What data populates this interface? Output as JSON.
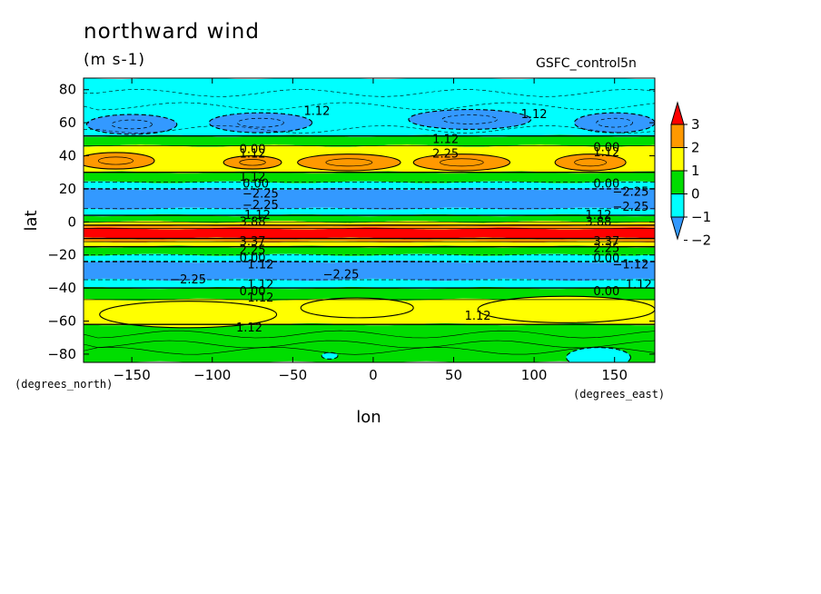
{
  "header": {
    "title": "northward wind",
    "units": "(m s-1)",
    "dataset": "GSFC_control5n"
  },
  "chart_data": {
    "type": "heatmap",
    "xlabel": "lon",
    "ylabel": "lat",
    "x_units": "(degrees_east)",
    "y_units": "(degrees_north)",
    "xlim": [
      -180,
      175
    ],
    "ylim": [
      -85,
      87
    ],
    "xticks": [
      -150,
      -100,
      -50,
      0,
      50,
      100,
      150
    ],
    "xtick_labels": [
      "−150",
      "−100",
      "−50",
      "0",
      "50",
      "100",
      "150"
    ],
    "yticks": [
      -80,
      -60,
      -40,
      -20,
      0,
      20,
      40,
      60,
      80
    ],
    "ytick_labels": [
      "−80",
      "−60",
      "−40",
      "−20",
      "0",
      "20",
      "40",
      "60",
      "80"
    ],
    "colorbar": {
      "levels": [
        -2,
        -1,
        0,
        1,
        2,
        3
      ],
      "labels": [
        "−2",
        "−1",
        "0",
        "1",
        "2",
        "3"
      ],
      "colors": [
        "#3399ff",
        "#00ffff",
        "#00dd00",
        "#ffff00",
        "#ff9900",
        "#ff0000"
      ]
    },
    "zonal_bands": [
      {
        "lat_from": 87,
        "lat_to": 52,
        "value": -1
      },
      {
        "lat_from": 52,
        "lat_to": 46,
        "value": 0
      },
      {
        "lat_from": 46,
        "lat_to": 30,
        "value": 1
      },
      {
        "lat_from": 30,
        "lat_to": 24,
        "value": 0
      },
      {
        "lat_from": 24,
        "lat_to": 20,
        "value": -1
      },
      {
        "lat_from": 20,
        "lat_to": 8,
        "value": -2
      },
      {
        "lat_from": 8,
        "lat_to": 4,
        "value": -1
      },
      {
        "lat_from": 4,
        "lat_to": 0,
        "value": 0
      },
      {
        "lat_from": 0,
        "lat_to": -2,
        "value": 1
      },
      {
        "lat_from": -2,
        "lat_to": -4,
        "value": 2
      },
      {
        "lat_from": -4,
        "lat_to": -10,
        "value": 3
      },
      {
        "lat_from": -10,
        "lat_to": -12,
        "value": 2
      },
      {
        "lat_from": -12,
        "lat_to": -15,
        "value": 1
      },
      {
        "lat_from": -15,
        "lat_to": -20,
        "value": 0
      },
      {
        "lat_from": -20,
        "lat_to": -24,
        "value": -1
      },
      {
        "lat_from": -24,
        "lat_to": -35,
        "value": -2
      },
      {
        "lat_from": -35,
        "lat_to": -40,
        "value": -1
      },
      {
        "lat_from": -40,
        "lat_to": -47,
        "value": 0
      },
      {
        "lat_from": -47,
        "lat_to": -62,
        "value": 1
      },
      {
        "lat_from": -62,
        "lat_to": -85,
        "value": 0
      }
    ],
    "blobs": [
      {
        "lon": -160,
        "lat": 37,
        "rlon": 24,
        "rlat": 5,
        "value": 2
      },
      {
        "lon": -75,
        "lat": 36,
        "rlon": 18,
        "rlat": 4,
        "value": 2
      },
      {
        "lon": -15,
        "lat": 36,
        "rlon": 32,
        "rlat": 5,
        "value": 2
      },
      {
        "lon": 55,
        "lat": 36,
        "rlon": 30,
        "rlat": 5,
        "value": 2
      },
      {
        "lon": 135,
        "lat": 36,
        "rlon": 22,
        "rlat": 5,
        "value": 2
      },
      {
        "lon": -150,
        "lat": 59,
        "rlon": 28,
        "rlat": 6,
        "value": -2
      },
      {
        "lon": -70,
        "lat": 60,
        "rlon": 32,
        "rlat": 6,
        "value": -2
      },
      {
        "lon": 60,
        "lat": 62,
        "rlon": 38,
        "rlat": 6,
        "value": -2
      },
      {
        "lon": 150,
        "lat": 60,
        "rlon": 25,
        "rlat": 6,
        "value": -2
      },
      {
        "lon": -115,
        "lat": -56,
        "rlon": 55,
        "rlat": 8,
        "value": 1
      },
      {
        "lon": -10,
        "lat": -52,
        "rlon": 35,
        "rlat": 6,
        "value": 1
      },
      {
        "lon": 120,
        "lat": -53,
        "rlon": 55,
        "rlat": 8,
        "value": 1
      },
      {
        "lon": 140,
        "lat": -82,
        "rlon": 20,
        "rlat": 6,
        "value": -1
      },
      {
        "lon": -27,
        "lat": -81,
        "rlon": 5,
        "rlat": 2,
        "value": -1
      }
    ],
    "contour_labels": [
      {
        "text": "1.12",
        "lon": -35,
        "lat": 67
      },
      {
        "text": "1.12",
        "lon": 100,
        "lat": 65
      },
      {
        "text": "1.12",
        "lon": 45,
        "lat": 50
      },
      {
        "text": "2.25",
        "lon": 45,
        "lat": 41
      },
      {
        "text": "0.00",
        "lon": -75,
        "lat": 44
      },
      {
        "text": "1.12",
        "lon": -75,
        "lat": 41
      },
      {
        "text": "0.00",
        "lon": 145,
        "lat": 45
      },
      {
        "text": "1.12",
        "lon": 145,
        "lat": 42
      },
      {
        "text": "1.12",
        "lon": -75,
        "lat": 27
      },
      {
        "text": "0.00",
        "lon": -73,
        "lat": 23
      },
      {
        "text": "−2.25",
        "lon": -70,
        "lat": 17
      },
      {
        "text": "−2.25",
        "lon": -70,
        "lat": 10
      },
      {
        "text": "0.00",
        "lon": 145,
        "lat": 23
      },
      {
        "text": "−2.25",
        "lon": 160,
        "lat": 18
      },
      {
        "text": "−2.25",
        "lon": 160,
        "lat": 9
      },
      {
        "text": "−1.12",
        "lon": -75,
        "lat": 4
      },
      {
        "text": "3.88",
        "lon": -75,
        "lat": 0
      },
      {
        "text": "1.12",
        "lon": 140,
        "lat": 4
      },
      {
        "text": "3.88",
        "lon": 140,
        "lat": 0
      },
      {
        "text": "3.37",
        "lon": -75,
        "lat": -12
      },
      {
        "text": "2.25",
        "lon": -75,
        "lat": -17
      },
      {
        "text": "3.37",
        "lon": 145,
        "lat": -12
      },
      {
        "text": "2.25",
        "lon": 145,
        "lat": -16
      },
      {
        "text": "0.00",
        "lon": -75,
        "lat": -22
      },
      {
        "text": "1.12",
        "lon": -70,
        "lat": -26
      },
      {
        "text": "0.00",
        "lon": 145,
        "lat": -22
      },
      {
        "text": "−1.12",
        "lon": 160,
        "lat": -26
      },
      {
        "text": "−2.25",
        "lon": -115,
        "lat": -35
      },
      {
        "text": "−2.25",
        "lon": -20,
        "lat": -32
      },
      {
        "text": "0.00",
        "lon": -75,
        "lat": -42
      },
      {
        "text": "1.12",
        "lon": -70,
        "lat": -46
      },
      {
        "text": "1.12",
        "lon": -70,
        "lat": -38
      },
      {
        "text": "0.00",
        "lon": 145,
        "lat": -42
      },
      {
        "text": "1.12",
        "lon": 165,
        "lat": -38
      },
      {
        "text": "1.12",
        "lon": 65,
        "lat": -57
      },
      {
        "text": "1.12",
        "lon": -77,
        "lat": -64
      }
    ]
  }
}
